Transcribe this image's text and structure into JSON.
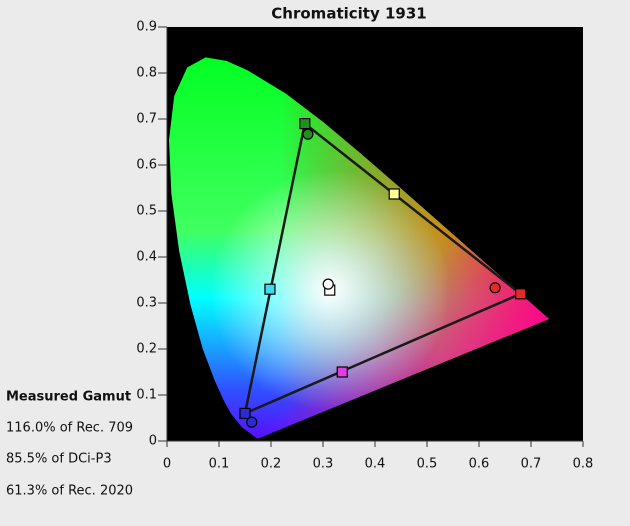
{
  "chart_data": {
    "type": "scatter",
    "title": "Chromaticity 1931",
    "xlim": [
      0,
      0.8
    ],
    "ylim": [
      0,
      0.9
    ],
    "xticks": [
      0,
      0.1,
      0.2,
      0.3,
      0.4,
      0.5,
      0.6,
      0.7,
      0.8
    ],
    "yticks": [
      0,
      0.1,
      0.2,
      0.3,
      0.4,
      0.5,
      0.6,
      0.7,
      0.8,
      0.9
    ],
    "background": "#000000",
    "series": [
      {
        "kind": "line",
        "closed": true,
        "color": "#1a1a1a",
        "x": [
          0.265,
          0.68,
          0.15
        ],
        "y": [
          0.69,
          0.32,
          0.06
        ]
      },
      {
        "kind": "points",
        "marker": "square",
        "x": [
          0.265,
          0.68,
          0.15,
          0.437,
          0.198,
          0.337,
          0.313
        ],
        "y": [
          0.69,
          0.32,
          0.06,
          0.537,
          0.33,
          0.15,
          0.328
        ],
        "colors": [
          "#1f8f1f",
          "#e52a26",
          "#2b2bd6",
          "#ffff9a",
          "#3fdcef",
          "#e23fe2",
          "#ffffff"
        ]
      },
      {
        "kind": "points",
        "marker": "circle",
        "x": [
          0.271,
          0.631,
          0.163,
          0.31
        ],
        "y": [
          0.667,
          0.333,
          0.041,
          0.341
        ],
        "colors": [
          "#1f8f1f",
          "#e52a26",
          "#2b2bd6",
          "#ffffff"
        ]
      }
    ]
  },
  "gamut_panel": {
    "title": "Measured Gamut",
    "lines": [
      "116.0% of Rec. 709",
      "85.5% of DCi-P3",
      "61.3% of Rec. 2020"
    ]
  }
}
